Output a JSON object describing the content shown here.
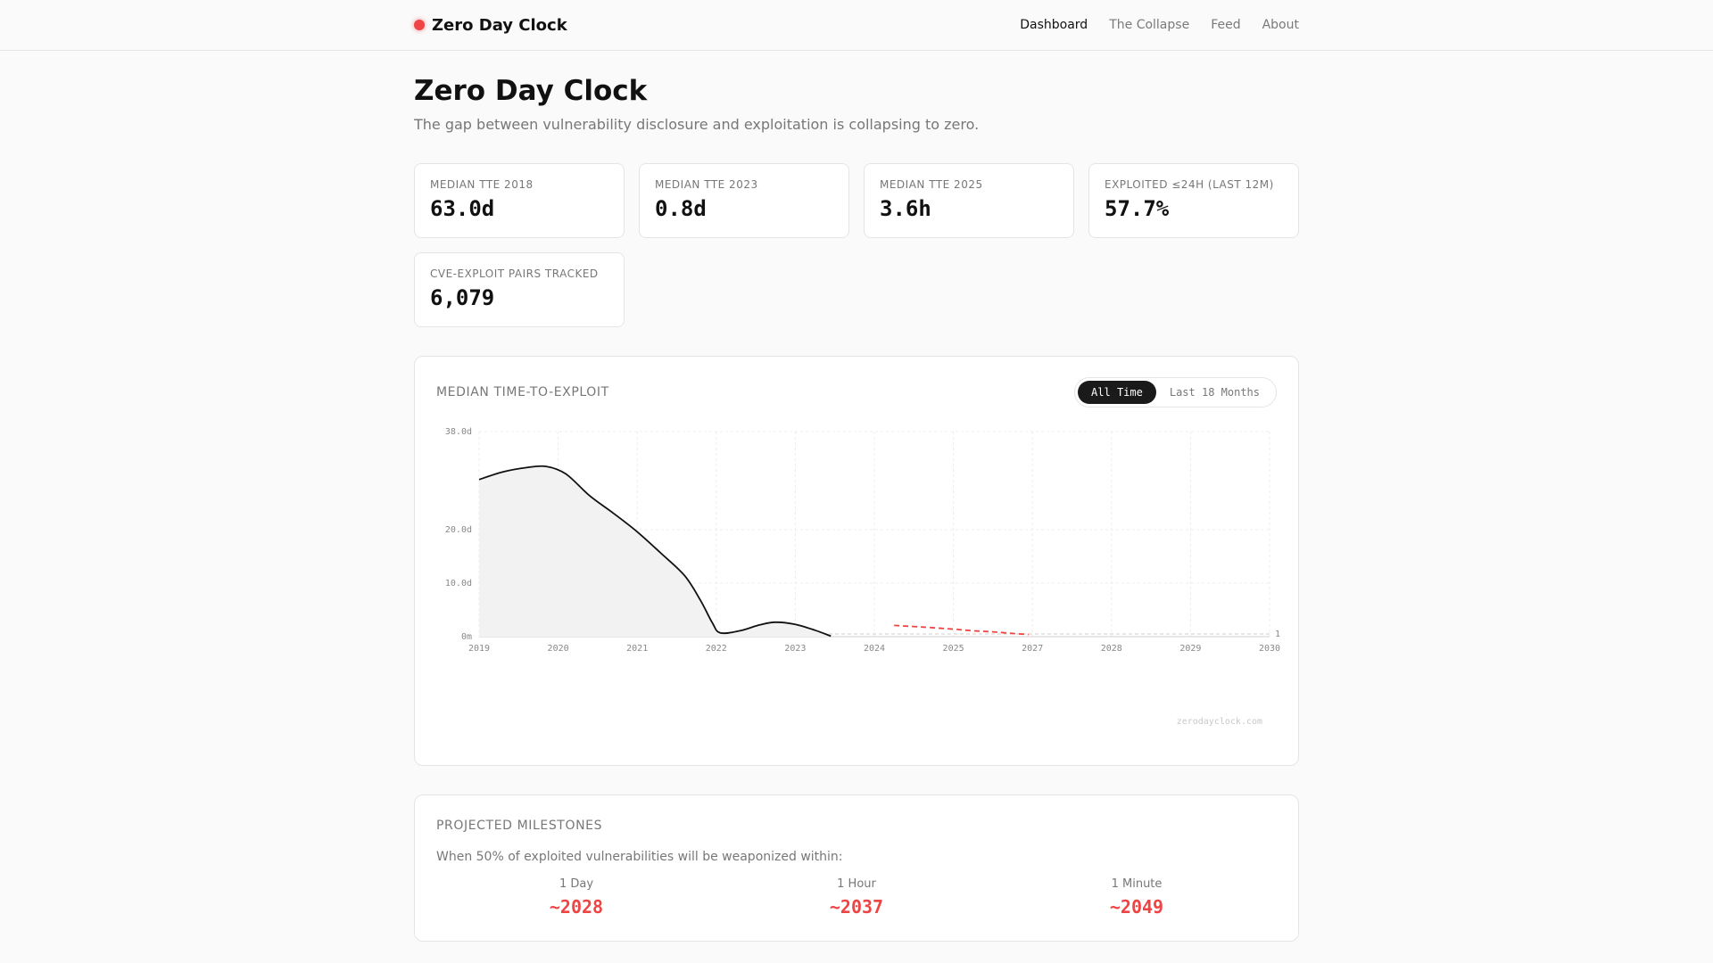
{
  "brand": {
    "name": "Zero Day Clock",
    "dot_color": "#ef4444"
  },
  "nav": [
    {
      "label": "Dashboard",
      "active": true
    },
    {
      "label": "The Collapse",
      "active": false
    },
    {
      "label": "Feed",
      "active": false
    },
    {
      "label": "About",
      "active": false
    }
  ],
  "page": {
    "title": "Zero Day Clock",
    "subtitle": "The gap between vulnerability disclosure and exploitation is collapsing to zero."
  },
  "stats": [
    {
      "label": "MEDIAN TTE 2018",
      "value": "63.0d"
    },
    {
      "label": "MEDIAN TTE 2023",
      "value": "0.8d"
    },
    {
      "label": "MEDIAN TTE 2025",
      "value": "3.6h"
    },
    {
      "label": "EXPLOITED ≤24H (LAST 12M)",
      "value": "57.7%"
    },
    {
      "label": "CVE-EXPLOIT PAIRS TRACKED",
      "value": "6,079"
    }
  ],
  "chart_card": {
    "title": "MEDIAN TIME-TO-EXPLOIT",
    "toggle": [
      {
        "label": "All Time",
        "active": true
      },
      {
        "label": "Last 18 Months",
        "active": false
      }
    ],
    "watermark": "zerodayclock.com"
  },
  "chart_data": {
    "type": "line",
    "x_ticks": [
      "2019",
      "2020",
      "2021",
      "2022",
      "2023",
      "2024",
      "2025",
      "2027",
      "2028",
      "2029",
      "2030"
    ],
    "y_ticks": [
      {
        "value": 0,
        "label": "0m"
      },
      {
        "value": 10,
        "label": "10.0d"
      },
      {
        "value": 20,
        "label": "20.0d"
      },
      {
        "value": 38,
        "label": "38.0d"
      }
    ],
    "ylim": [
      0,
      38
    ],
    "reference_line": {
      "value": 1,
      "label": "1"
    },
    "series": [
      {
        "style": "solid",
        "color": "#111111",
        "fill": "#f2f2f2",
        "points": [
          [
            2019.0,
            29.2
          ],
          [
            2019.3,
            30.6
          ],
          [
            2019.6,
            31.4
          ],
          [
            2019.85,
            31.6
          ],
          [
            2020.1,
            30.2
          ],
          [
            2020.4,
            26.2
          ],
          [
            2020.7,
            23.0
          ],
          [
            2021.0,
            19.6
          ],
          [
            2021.3,
            15.6
          ],
          [
            2021.6,
            11.4
          ],
          [
            2021.8,
            6.8
          ],
          [
            2021.95,
            2.6
          ],
          [
            2022.05,
            0.7
          ],
          [
            2022.3,
            1.1
          ],
          [
            2022.55,
            2.2
          ],
          [
            2022.75,
            2.7
          ],
          [
            2023.0,
            2.3
          ],
          [
            2023.25,
            1.2
          ],
          [
            2023.45,
            0.1
          ]
        ]
      },
      {
        "style": "dashed",
        "color": "#ef4444",
        "points": [
          [
            2024.25,
            2.1
          ],
          [
            2024.6,
            1.8
          ],
          [
            2025.0,
            1.4
          ],
          [
            2025.5,
            1.1
          ],
          [
            2026.0,
            0.9
          ],
          [
            2026.5,
            0.6
          ],
          [
            2026.9,
            0.4
          ]
        ]
      }
    ]
  },
  "milestones": {
    "title": "PROJECTED MILESTONES",
    "description": "When 50% of exploited vulnerabilities will be weaponized within:",
    "items": [
      {
        "label": "1 Day",
        "year": "~2028"
      },
      {
        "label": "1 Hour",
        "year": "~2037"
      },
      {
        "label": "1 Minute",
        "year": "~2049"
      }
    ]
  }
}
